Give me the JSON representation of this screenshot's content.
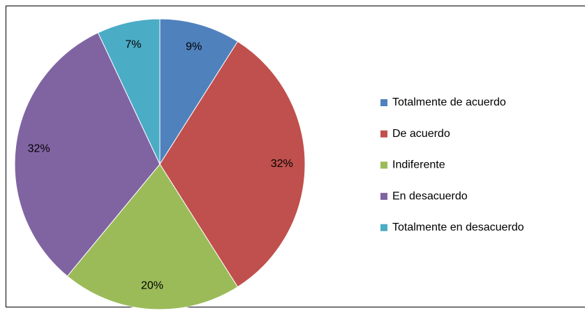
{
  "chart_data": {
    "type": "pie",
    "categories": [
      "Totalmente de acuerdo",
      "De acuerdo",
      "Indiferente",
      "En desacuerdo",
      "Totalmente en desacuerdo"
    ],
    "values": [
      9,
      32,
      20,
      32,
      7
    ],
    "value_labels": [
      "9%",
      "32%",
      "20%",
      "32%",
      "7%"
    ],
    "colors": [
      "#4f81bd",
      "#c0504d",
      "#9bbb59",
      "#8064a2",
      "#4bacc6"
    ],
    "legend": "right"
  }
}
